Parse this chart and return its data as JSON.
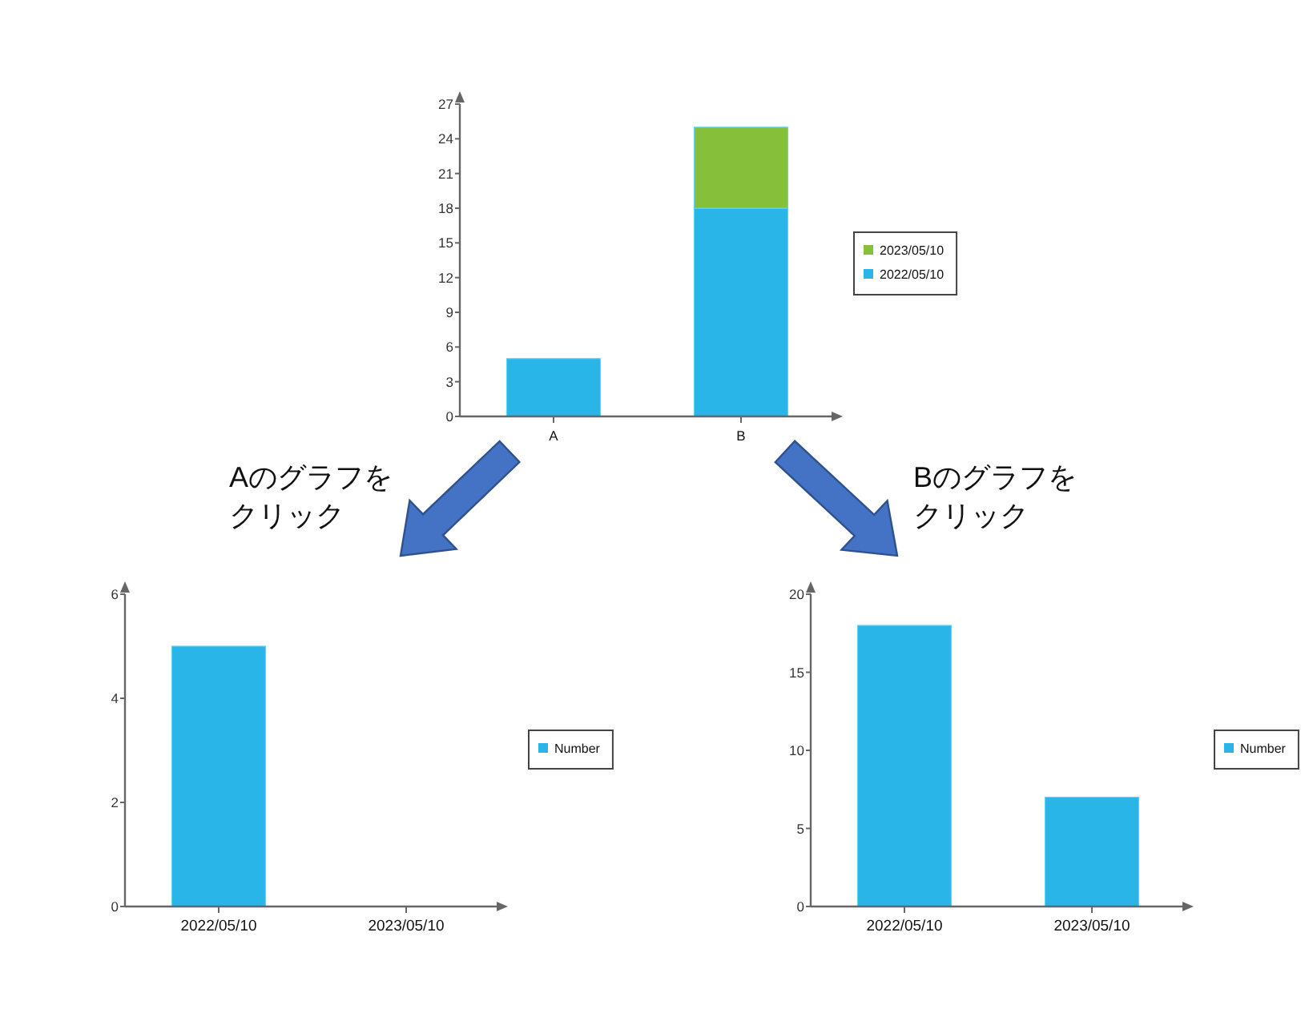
{
  "chart_data": [
    {
      "type": "bar",
      "stacked": true,
      "categories": [
        "A",
        "B"
      ],
      "series": [
        {
          "name": "2022/05/10",
          "color": "#29b5e8",
          "values": [
            5,
            18
          ]
        },
        {
          "name": "2023/05/10",
          "color": "#86bf3a",
          "values": [
            0,
            7
          ]
        }
      ],
      "ylim": [
        0,
        27
      ],
      "yticks": [
        0,
        3,
        6,
        9,
        12,
        15,
        18,
        21,
        24,
        27
      ],
      "grid": false,
      "legend": "right"
    },
    {
      "type": "bar",
      "categories": [
        "2022/05/10",
        "2023/05/10"
      ],
      "series": [
        {
          "name": "Number",
          "color": "#29b5e8",
          "values": [
            5,
            0
          ]
        }
      ],
      "ylim": [
        0,
        6
      ],
      "yticks": [
        0,
        2,
        4,
        6
      ],
      "grid": false,
      "legend": "right",
      "annotations": [
        "Aのグラフをクリック"
      ]
    },
    {
      "type": "bar",
      "categories": [
        "2022/05/10",
        "2023/05/10"
      ],
      "series": [
        {
          "name": "Number",
          "color": "#29b5e8",
          "values": [
            18,
            7
          ]
        }
      ],
      "ylim": [
        0,
        20
      ],
      "yticks": [
        0,
        5,
        10,
        15,
        20
      ],
      "grid": false,
      "legend": "right",
      "annotations": [
        "Bのグラフをクリック"
      ]
    }
  ]
}
